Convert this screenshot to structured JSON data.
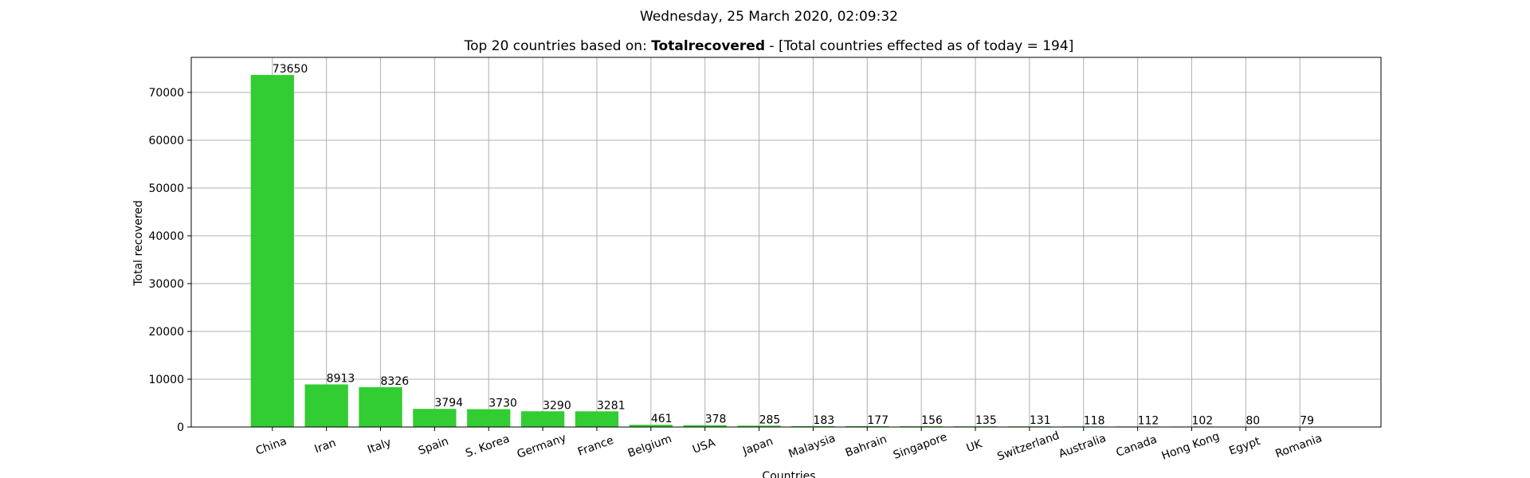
{
  "suptitle": "Wednesday, 25 March 2020, 02:09:32",
  "title": {
    "prefix": "Top 20 countries based on: ",
    "metric": "Totalrecovered",
    "suffix": " - [Total countries effected as of today = 194]"
  },
  "chart_data": {
    "type": "bar",
    "categories": [
      "China",
      "Iran",
      "Italy",
      "Spain",
      "S. Korea",
      "Germany",
      "France",
      "Belgium",
      "USA",
      "Japan",
      "Malaysia",
      "Bahrain",
      "Singapore",
      "UK",
      "Switzerland",
      "Australia",
      "Canada",
      "Hong Kong",
      "Egypt",
      "Romania"
    ],
    "values": [
      73650,
      8913,
      8326,
      3794,
      3730,
      3290,
      3281,
      461,
      378,
      285,
      183,
      177,
      156,
      135,
      131,
      118,
      112,
      102,
      80,
      79
    ],
    "xlabel": "Countries",
    "ylabel": "Total recovered",
    "ylim": [
      0,
      77332
    ],
    "yticks": [
      0,
      10000,
      20000,
      30000,
      40000,
      50000,
      60000,
      70000
    ],
    "grid": true,
    "bar_color": "#32cd32",
    "x_tick_rotation": "rotated ~20 degrees"
  }
}
